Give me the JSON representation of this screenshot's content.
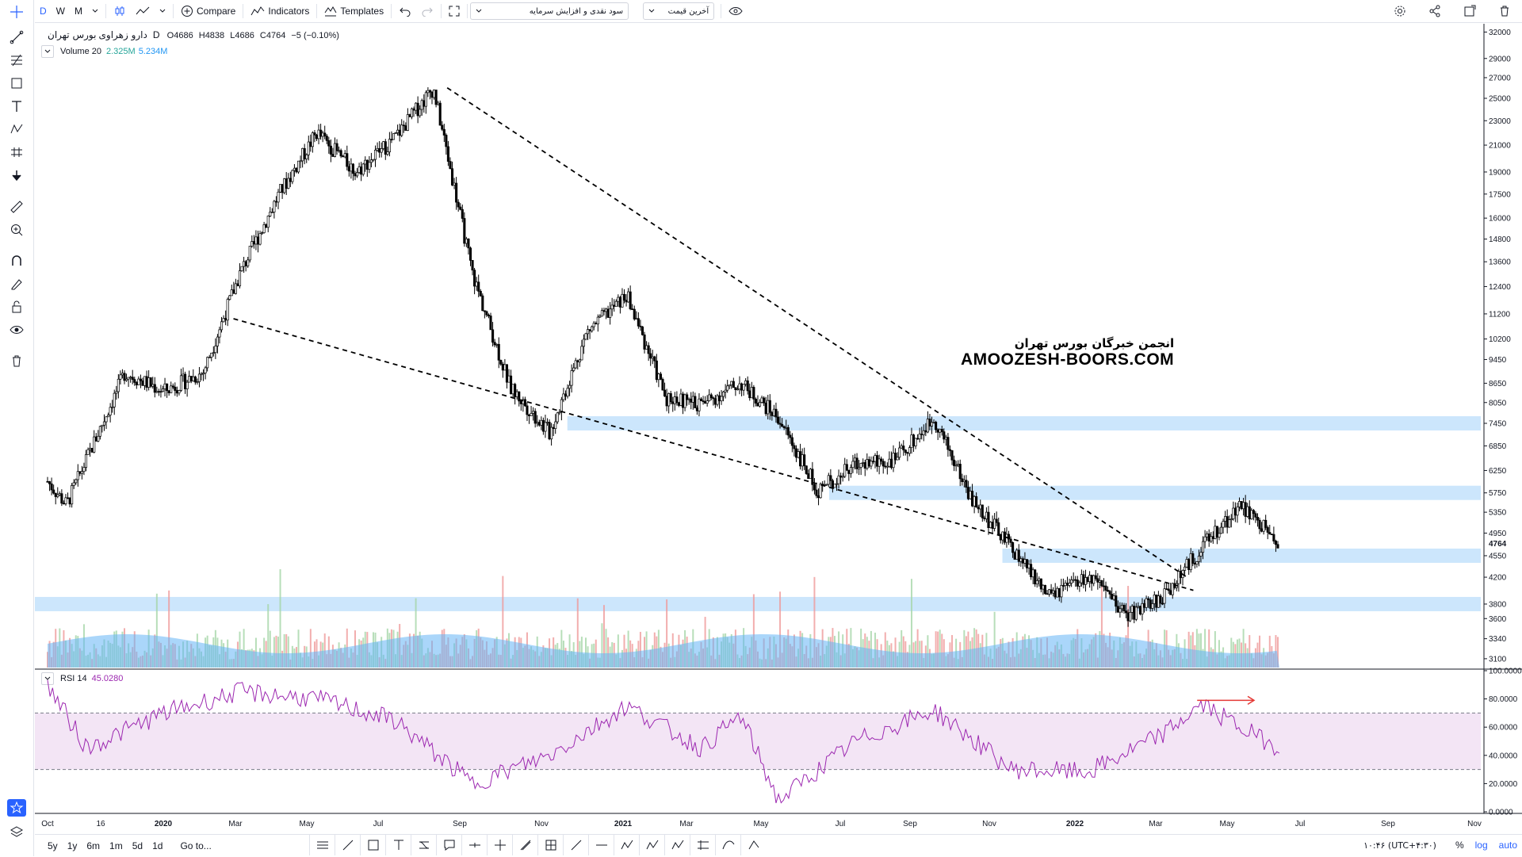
{
  "toolbar": {
    "intervals": [
      "D",
      "W",
      "M"
    ],
    "active_interval": "D",
    "compare_label": "Compare",
    "indicators_label": "Indicators",
    "templates_label": "Templates",
    "study_select_value": "سود نقدی و افزایش سرمایه",
    "price_select_value": "آخرین قیمت"
  },
  "legend": {
    "symbol": "دارو زهراوی",
    "exchange": "بورس تهران",
    "interval": "D",
    "open": "O4686",
    "high": "H4838",
    "low": "L4686",
    "close": "C4764",
    "change": "−5 (−0.10%)",
    "volume_label": "Volume 20",
    "volume_val1": "2.325M",
    "volume_val2": "5.234M",
    "rsi_label": "RSI 14",
    "rsi_value": "45.0280"
  },
  "watermark": {
    "line1": "انجمن خبرگان بورس تهران",
    "line2": "AMOOZESH-BOORS.COM"
  },
  "price_axis": [
    "32000",
    "29000",
    "27000",
    "25000",
    "23000",
    "21000",
    "19000",
    "17500",
    "16000",
    "14800",
    "13600",
    "12400",
    "11200",
    "10200",
    "9450",
    "8650",
    "8050",
    "7450",
    "6850",
    "6250",
    "5750",
    "5350",
    "4950",
    "4550",
    "4200",
    "3800",
    "3600",
    "3340",
    "3100"
  ],
  "last_price": "4764",
  "rsi_axis": [
    "100.0000",
    "80.0000",
    "60.0000",
    "40.0000",
    "20.0000",
    "0.0000"
  ],
  "time_axis": [
    "Oct",
    "16",
    "2020",
    "Mar",
    "May",
    "Jul",
    "Sep",
    "Nov",
    "2021",
    "Mar",
    "May",
    "Jul",
    "Sep",
    "Nov",
    "2022",
    "Mar",
    "May",
    "Jul",
    "Sep",
    "Nov"
  ],
  "bottom": {
    "timeframes": [
      "5y",
      "1y",
      "6m",
      "1m",
      "5d",
      "1d"
    ],
    "goto_label": "Go to...",
    "clock": "۱۰:۴۶ (UTC+۴:۳۰)",
    "percent_label": "%",
    "log_label": "log",
    "auto_label": "auto"
  },
  "colors": {
    "accent": "#2962ff",
    "zone": "#bbdefb",
    "rsi_line": "#9c27b0",
    "rsi_band": "#f3e5f5",
    "vol_area": "#64b5f6",
    "arrow": "#e53935"
  },
  "chart_data": {
    "type": "candlestick",
    "price_scale": "log",
    "trendlines": "two dashed lines forming a descending wedge",
    "support_zones": [
      7450,
      5750,
      4550,
      3800
    ],
    "price_path": [
      {
        "date": "2019-10",
        "price": 6000
      },
      {
        "date": "2019-10-16",
        "price": 5500
      },
      {
        "date": "2019-12",
        "price": 9000
      },
      {
        "date": "2020-01",
        "price": 8400
      },
      {
        "date": "2020-02",
        "price": 9000
      },
      {
        "date": "2020-03",
        "price": 13000
      },
      {
        "date": "2020-04",
        "price": 17500
      },
      {
        "date": "2020-05",
        "price": 22000
      },
      {
        "date": "2020-06",
        "price": 19000
      },
      {
        "date": "2020-07",
        "price": 21500
      },
      {
        "date": "2020-08",
        "price": 26000
      },
      {
        "date": "2020-09",
        "price": 13000
      },
      {
        "date": "2020-10",
        "price": 8500
      },
      {
        "date": "2020-11",
        "price": 7200
      },
      {
        "date": "2020-12",
        "price": 10500
      },
      {
        "date": "2021-01",
        "price": 12000
      },
      {
        "date": "2021-02",
        "price": 8200
      },
      {
        "date": "2021-03",
        "price": 8000
      },
      {
        "date": "2021-04",
        "price": 8650
      },
      {
        "date": "2021-05",
        "price": 7600
      },
      {
        "date": "2021-06",
        "price": 5800
      },
      {
        "date": "2021-07",
        "price": 6400
      },
      {
        "date": "2021-08",
        "price": 6500
      },
      {
        "date": "2021-09",
        "price": 7600
      },
      {
        "date": "2021-10",
        "price": 5600
      },
      {
        "date": "2021-11",
        "price": 4700
      },
      {
        "date": "2021-12",
        "price": 3900
      },
      {
        "date": "2022-01",
        "price": 4200
      },
      {
        "date": "2022-02",
        "price": 3650
      },
      {
        "date": "2022-03",
        "price": 3900
      },
      {
        "date": "2022-04",
        "price": 4700
      },
      {
        "date": "2022-05",
        "price": 5500
      },
      {
        "date": "2022-06",
        "price": 4764
      }
    ],
    "rsi_path": [
      {
        "date": "2019-10",
        "value": 90
      },
      {
        "date": "2019-11",
        "value": 45
      },
      {
        "date": "2020-01",
        "value": 70
      },
      {
        "date": "2020-03",
        "value": 85
      },
      {
        "date": "2020-05",
        "value": 80
      },
      {
        "date": "2020-07",
        "value": 65
      },
      {
        "date": "2020-09",
        "value": 20
      },
      {
        "date": "2020-11",
        "value": 40
      },
      {
        "date": "2021-01",
        "value": 75
      },
      {
        "date": "2021-03",
        "value": 45
      },
      {
        "date": "2021-04",
        "value": 68
      },
      {
        "date": "2021-05",
        "value": 8
      },
      {
        "date": "2021-07",
        "value": 50
      },
      {
        "date": "2021-09",
        "value": 72
      },
      {
        "date": "2021-11",
        "value": 30
      },
      {
        "date": "2022-01",
        "value": 28
      },
      {
        "date": "2022-03",
        "value": 55
      },
      {
        "date": "2022-04",
        "value": 76
      },
      {
        "date": "2022-05",
        "value": 60
      },
      {
        "date": "2022-06",
        "value": 45
      }
    ],
    "rsi_bands": [
      70,
      30
    ],
    "rsi_ylim": [
      0,
      100
    ]
  }
}
